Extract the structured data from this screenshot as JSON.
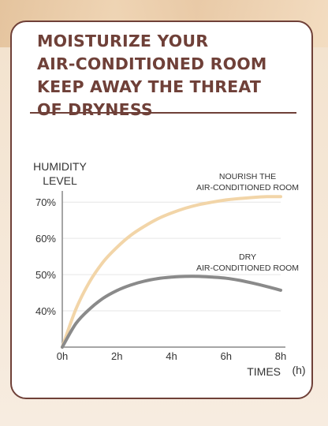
{
  "headline": {
    "line1": "MOISTURIZE YOUR",
    "line2": "AIR-CONDITIONED ROOM",
    "line3": "KEEP AWAY THE THREAT",
    "line4": "OF DRYNESS"
  },
  "colors": {
    "brand": "#6f4038",
    "nourish_curve": "#f2d5a8",
    "dry_curve": "#8a8a8a"
  },
  "chart_data": {
    "type": "line",
    "ylabel_line1": "HUMIDITY",
    "ylabel_line2": "LEVEL",
    "xlabel": "TIMES",
    "xunit": "(h)",
    "x_ticks": [
      "0h",
      "2h",
      "4h",
      "6h",
      "8h"
    ],
    "y_ticks": [
      "40%",
      "50%",
      "60%",
      "70%"
    ],
    "xlim": [
      0,
      8
    ],
    "ylim": [
      30,
      72
    ],
    "grid": true,
    "series": [
      {
        "label_line1": "NOURISH THE",
        "label_line2": "AIR-CONDITIONED ROOM",
        "x": [
          0,
          0.5,
          1,
          1.5,
          2,
          2.5,
          3,
          3.5,
          4,
          4.5,
          5,
          5.5,
          6,
          6.5,
          7,
          7.5,
          8
        ],
        "y": [
          30,
          40.5,
          48,
          53.5,
          57.5,
          60.8,
          63.3,
          65.4,
          67.0,
          68.3,
          69.3,
          70.0,
          70.6,
          71.0,
          71.3,
          71.5,
          71.5
        ]
      },
      {
        "label_line1": "DRY",
        "label_line2": "AIR-CONDITIONED ROOM",
        "x": [
          0,
          0.5,
          1,
          1.5,
          2,
          2.5,
          3,
          3.5,
          4,
          4.5,
          5,
          5.5,
          6,
          6.5,
          7,
          7.5,
          8
        ],
        "y": [
          30,
          36.5,
          40.5,
          43.5,
          45.6,
          47.1,
          48.2,
          48.9,
          49.3,
          49.5,
          49.5,
          49.3,
          49.0,
          48.4,
          47.6,
          46.7,
          45.7
        ]
      }
    ]
  }
}
